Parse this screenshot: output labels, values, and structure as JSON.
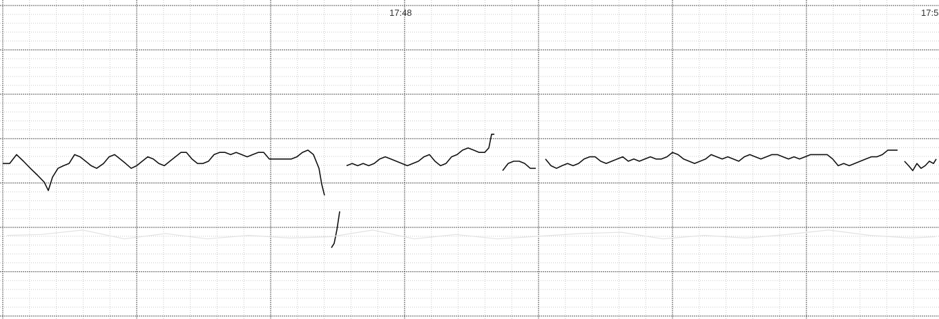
{
  "chart_data": {
    "type": "line",
    "title": "",
    "xlabel": "",
    "ylabel": "",
    "time_labels": [
      "17:48",
      "17:5"
    ],
    "xlim": [
      0,
      1360
    ],
    "ylim": [
      0,
      7
    ],
    "grid": true,
    "colors": {
      "major_grid": "#555555",
      "minor_grid": "#c8c8c8",
      "trace": "#111111",
      "faint_trace": "#e2e2e2",
      "label": "#333333"
    },
    "series": [
      {
        "color": "#111111",
        "segments": [
          [
            [
              4,
              3.44
            ],
            [
              14,
              3.44
            ],
            [
              24,
              3.64
            ],
            [
              34,
              3.49
            ],
            [
              44,
              3.33
            ],
            [
              54,
              3.18
            ],
            [
              64,
              3.02
            ],
            [
              70,
              2.83
            ],
            [
              76,
              3.13
            ],
            [
              84,
              3.33
            ],
            [
              92,
              3.39
            ],
            [
              100,
              3.44
            ],
            [
              108,
              3.64
            ],
            [
              116,
              3.59
            ],
            [
              124,
              3.49
            ],
            [
              132,
              3.39
            ],
            [
              140,
              3.33
            ],
            [
              150,
              3.44
            ],
            [
              158,
              3.59
            ],
            [
              166,
              3.64
            ],
            [
              174,
              3.54
            ],
            [
              182,
              3.44
            ],
            [
              190,
              3.33
            ],
            [
              198,
              3.39
            ],
            [
              206,
              3.49
            ],
            [
              214,
              3.59
            ],
            [
              222,
              3.54
            ],
            [
              230,
              3.44
            ],
            [
              238,
              3.39
            ],
            [
              246,
              3.49
            ],
            [
              254,
              3.59
            ],
            [
              262,
              3.69
            ],
            [
              270,
              3.69
            ],
            [
              278,
              3.54
            ],
            [
              286,
              3.44
            ],
            [
              294,
              3.44
            ],
            [
              302,
              3.49
            ],
            [
              310,
              3.64
            ],
            [
              318,
              3.69
            ],
            [
              326,
              3.69
            ],
            [
              334,
              3.64
            ],
            [
              342,
              3.69
            ],
            [
              350,
              3.64
            ],
            [
              358,
              3.59
            ],
            [
              366,
              3.64
            ],
            [
              374,
              3.69
            ],
            [
              382,
              3.69
            ],
            [
              390,
              3.54
            ],
            [
              398,
              3.54
            ],
            [
              406,
              3.54
            ],
            [
              414,
              3.54
            ],
            [
              422,
              3.54
            ],
            [
              430,
              3.59
            ],
            [
              438,
              3.69
            ],
            [
              446,
              3.74
            ],
            [
              454,
              3.64
            ],
            [
              462,
              3.33
            ],
            [
              466,
              2.97
            ],
            [
              470,
              2.72
            ]
          ],
          [
            [
              480,
              1.54
            ],
            [
              484,
              1.64
            ],
            [
              488,
              1.95
            ],
            [
              492,
              2.36
            ]
          ],
          [
            [
              502,
              3.39
            ],
            [
              510,
              3.44
            ],
            [
              518,
              3.39
            ],
            [
              526,
              3.44
            ],
            [
              534,
              3.39
            ],
            [
              542,
              3.44
            ],
            [
              550,
              3.54
            ],
            [
              558,
              3.59
            ],
            [
              566,
              3.54
            ],
            [
              574,
              3.49
            ],
            [
              582,
              3.44
            ],
            [
              590,
              3.39
            ],
            [
              598,
              3.44
            ],
            [
              606,
              3.49
            ],
            [
              614,
              3.59
            ],
            [
              622,
              3.64
            ],
            [
              630,
              3.49
            ],
            [
              638,
              3.39
            ],
            [
              646,
              3.44
            ],
            [
              654,
              3.59
            ],
            [
              662,
              3.64
            ],
            [
              670,
              3.74
            ],
            [
              678,
              3.79
            ],
            [
              686,
              3.74
            ],
            [
              694,
              3.69
            ],
            [
              702,
              3.69
            ],
            [
              708,
              3.79
            ],
            [
              712,
              4.1
            ],
            [
              716,
              4.1
            ]
          ],
          [
            [
              728,
              3.28
            ],
            [
              736,
              3.44
            ],
            [
              744,
              3.49
            ],
            [
              752,
              3.49
            ],
            [
              760,
              3.44
            ],
            [
              768,
              3.33
            ],
            [
              776,
              3.33
            ]
          ],
          [
            [
              790,
              3.54
            ],
            [
              798,
              3.39
            ],
            [
              806,
              3.33
            ],
            [
              814,
              3.39
            ],
            [
              822,
              3.44
            ],
            [
              830,
              3.39
            ],
            [
              838,
              3.44
            ],
            [
              846,
              3.54
            ],
            [
              854,
              3.59
            ],
            [
              862,
              3.59
            ],
            [
              870,
              3.49
            ],
            [
              878,
              3.44
            ],
            [
              886,
              3.49
            ],
            [
              894,
              3.54
            ],
            [
              902,
              3.59
            ],
            [
              910,
              3.49
            ],
            [
              918,
              3.54
            ],
            [
              926,
              3.49
            ],
            [
              934,
              3.54
            ],
            [
              942,
              3.59
            ],
            [
              950,
              3.54
            ],
            [
              958,
              3.54
            ],
            [
              966,
              3.59
            ],
            [
              974,
              3.69
            ],
            [
              982,
              3.64
            ],
            [
              990,
              3.54
            ],
            [
              998,
              3.49
            ],
            [
              1006,
              3.44
            ],
            [
              1014,
              3.49
            ],
            [
              1022,
              3.54
            ],
            [
              1030,
              3.64
            ],
            [
              1038,
              3.59
            ],
            [
              1046,
              3.54
            ],
            [
              1054,
              3.59
            ],
            [
              1062,
              3.54
            ],
            [
              1070,
              3.49
            ],
            [
              1078,
              3.59
            ],
            [
              1086,
              3.64
            ],
            [
              1094,
              3.59
            ],
            [
              1102,
              3.54
            ],
            [
              1110,
              3.59
            ],
            [
              1118,
              3.64
            ],
            [
              1126,
              3.64
            ],
            [
              1134,
              3.59
            ],
            [
              1142,
              3.54
            ],
            [
              1150,
              3.59
            ],
            [
              1158,
              3.54
            ],
            [
              1166,
              3.59
            ],
            [
              1174,
              3.64
            ],
            [
              1182,
              3.64
            ],
            [
              1190,
              3.64
            ],
            [
              1198,
              3.64
            ],
            [
              1206,
              3.54
            ],
            [
              1214,
              3.39
            ],
            [
              1222,
              3.44
            ],
            [
              1230,
              3.39
            ],
            [
              1238,
              3.44
            ],
            [
              1246,
              3.49
            ],
            [
              1254,
              3.54
            ],
            [
              1262,
              3.59
            ],
            [
              1270,
              3.59
            ],
            [
              1278,
              3.64
            ],
            [
              1286,
              3.74
            ],
            [
              1294,
              3.74
            ],
            [
              1300,
              3.74
            ]
          ],
          [
            [
              1310,
              3.49
            ],
            [
              1316,
              3.39
            ],
            [
              1322,
              3.28
            ],
            [
              1328,
              3.44
            ],
            [
              1334,
              3.33
            ],
            [
              1340,
              3.39
            ],
            [
              1346,
              3.49
            ],
            [
              1352,
              3.44
            ],
            [
              1356,
              3.54
            ]
          ]
        ]
      },
      {
        "color": "#e2e2e2",
        "segments": [
          [
            [
              10,
              1.82
            ],
            [
              60,
              1.84
            ],
            [
              120,
              1.94
            ],
            [
              180,
              1.74
            ],
            [
              240,
              1.86
            ],
            [
              300,
              1.74
            ],
            [
              360,
              1.82
            ],
            [
              420,
              1.76
            ],
            [
              480,
              1.79
            ],
            [
              540,
              1.94
            ],
            [
              600,
              1.74
            ],
            [
              660,
              1.84
            ],
            [
              720,
              1.74
            ],
            [
              780,
              1.8
            ],
            [
              840,
              1.86
            ],
            [
              900,
              1.89
            ],
            [
              960,
              1.74
            ],
            [
              1020,
              1.82
            ],
            [
              1080,
              1.76
            ],
            [
              1140,
              1.84
            ],
            [
              1200,
              1.94
            ],
            [
              1260,
              1.82
            ],
            [
              1320,
              1.76
            ],
            [
              1355,
              1.79
            ]
          ]
        ]
      }
    ]
  }
}
